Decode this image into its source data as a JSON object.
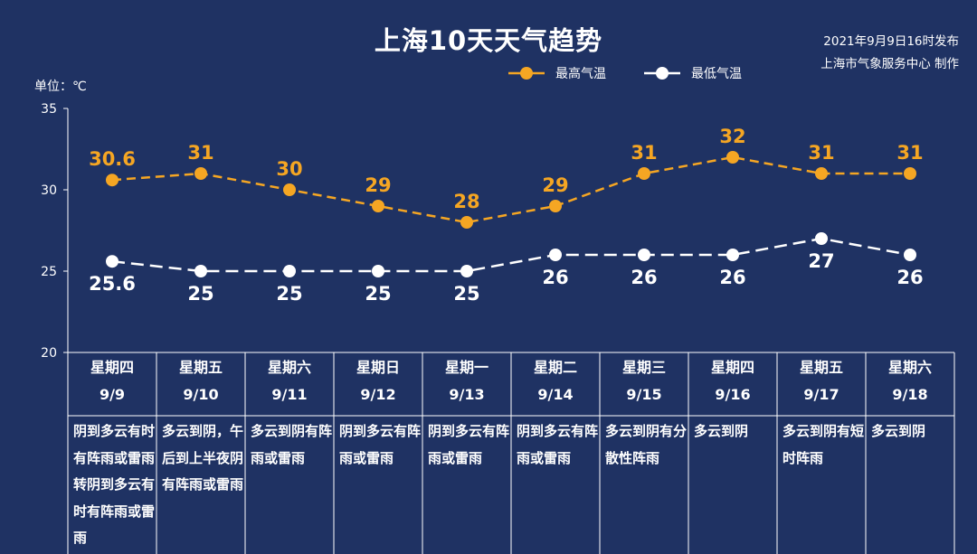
{
  "header": {
    "title": "上海10天天气趋势",
    "publish_time": "2021年9月9日16时发布",
    "publisher": "上海市气象服务中心 制作",
    "unit": "单位：℃"
  },
  "legend": {
    "high": "最高气温",
    "low": "最低气温"
  },
  "colors": {
    "background": "#1f3263",
    "high": "#f5a623",
    "low": "#ffffff"
  },
  "days": [
    {
      "weekday": "星期四",
      "date": "9/9",
      "desc": "阴到多云有时有阵雨或雷雨转阴到多云有时有阵雨或雷雨"
    },
    {
      "weekday": "星期五",
      "date": "9/10",
      "desc": "多云到阴，午后到上半夜阴有阵雨或雷雨"
    },
    {
      "weekday": "星期六",
      "date": "9/11",
      "desc": "多云到阴有阵雨或雷雨"
    },
    {
      "weekday": "星期日",
      "date": "9/12",
      "desc": "阴到多云有阵雨或雷雨"
    },
    {
      "weekday": "星期一",
      "date": "9/13",
      "desc": "阴到多云有阵雨或雷雨"
    },
    {
      "weekday": "星期二",
      "date": "9/14",
      "desc": "阴到多云有阵雨或雷雨"
    },
    {
      "weekday": "星期三",
      "date": "9/15",
      "desc": "多云到阴有分散性阵雨"
    },
    {
      "weekday": "星期四",
      "date": "9/16",
      "desc": "多云到阴"
    },
    {
      "weekday": "星期五",
      "date": "9/17",
      "desc": "多云到阴有短时阵雨"
    },
    {
      "weekday": "星期六",
      "date": "9/18",
      "desc": "多云到阴"
    }
  ],
  "chart_data": {
    "type": "line",
    "title": "上海10天天气趋势",
    "ylabel": "单位：℃",
    "ylim": [
      20,
      35
    ],
    "yticks": [
      20,
      25,
      30,
      35
    ],
    "categories": [
      "9/9",
      "9/10",
      "9/11",
      "9/12",
      "9/13",
      "9/14",
      "9/15",
      "9/16",
      "9/17",
      "9/18"
    ],
    "series": [
      {
        "name": "最高气温",
        "values": [
          30.6,
          31,
          30,
          29,
          28,
          29,
          31,
          32,
          31,
          31
        ],
        "labels": [
          "30.6",
          "31",
          "30",
          "29",
          "28",
          "29",
          "31",
          "32",
          "31",
          "31"
        ]
      },
      {
        "name": "最低气温",
        "values": [
          25.6,
          25,
          25,
          25,
          25,
          26,
          26,
          26,
          27,
          26
        ],
        "labels": [
          "25.6",
          "25",
          "25",
          "25",
          "25",
          "26",
          "26",
          "26",
          "27",
          "26"
        ]
      }
    ],
    "grid": false,
    "legend_position": "top-center"
  }
}
